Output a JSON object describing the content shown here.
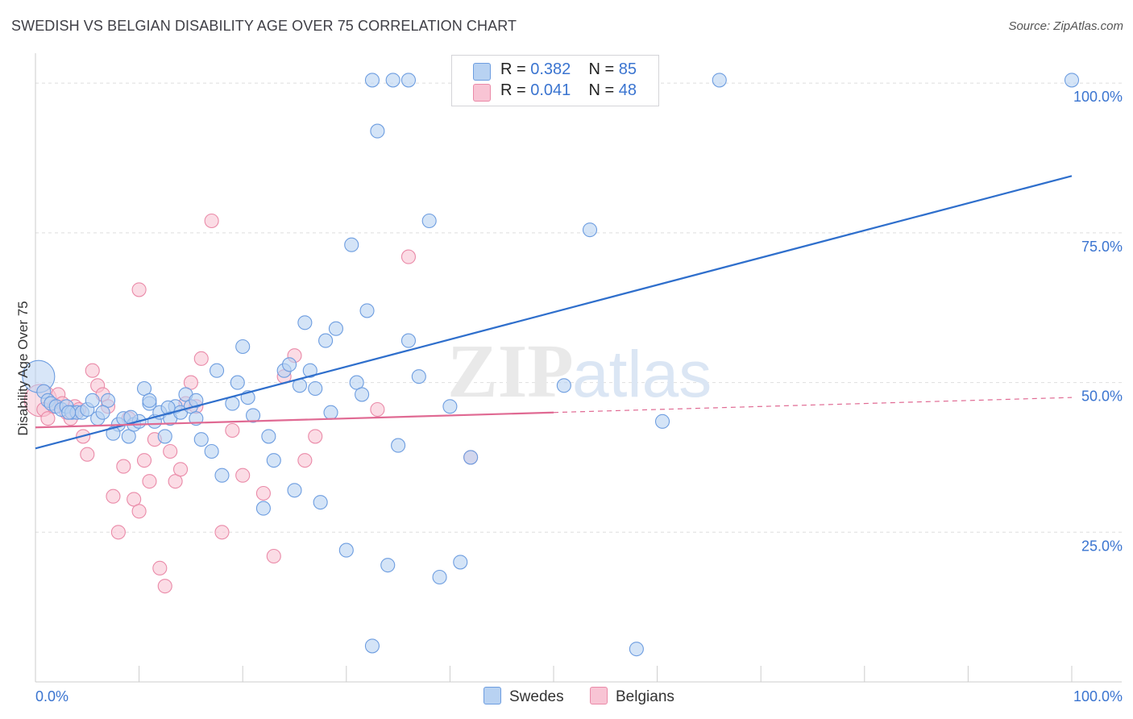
{
  "title": "SWEDISH VS BELGIAN DISABILITY AGE OVER 75 CORRELATION CHART",
  "source": "Source: ZipAtlas.com",
  "watermark": {
    "zip": "ZIP",
    "atlas": "atlas"
  },
  "legend": {
    "r_label": "R = ",
    "n_label": "N = ",
    "swedes": {
      "r": "0.382",
      "n": "85"
    },
    "belgians": {
      "r": "0.041",
      "n": "48"
    }
  },
  "bottom_legend": {
    "swedes": "Swedes",
    "belgians": "Belgians"
  },
  "colors": {
    "swedes_fill": "#b8d2f2",
    "swedes_stroke": "#6d9de0",
    "swedes_line": "#2f6fcc",
    "belgians_fill": "#f8c4d4",
    "belgians_stroke": "#ea8aa8",
    "belgians_line": "#e06a93",
    "axis_label": "#3a74d0",
    "grid": "#dedede"
  },
  "chart_data": {
    "type": "scatter",
    "title": "SWEDISH VS BELGIAN DISABILITY AGE OVER 75 CORRELATION CHART",
    "xlabel": "",
    "ylabel": "Disability Age Over 75",
    "xlim": [
      0,
      100
    ],
    "ylim": [
      0,
      105
    ],
    "x_tick_labels": [
      "0.0%",
      "100.0%"
    ],
    "y_ticks": [
      25,
      50,
      75,
      100
    ],
    "y_tick_labels": [
      "25.0%",
      "50.0%",
      "75.0%",
      "100.0%"
    ],
    "series": [
      {
        "name": "Swedes",
        "r": 0.382,
        "n": 85,
        "trend": {
          "x": [
            0,
            100
          ],
          "y": [
            39,
            84.5
          ]
        },
        "points": [
          [
            0.3,
            51
          ],
          [
            0.8,
            48.5
          ],
          [
            1.2,
            47
          ],
          [
            1.5,
            46.5
          ],
          [
            2,
            46
          ],
          [
            2.5,
            45.5
          ],
          [
            3,
            46
          ],
          [
            3.5,
            45
          ],
          [
            4,
            45
          ],
          [
            4.5,
            45
          ],
          [
            5,
            45.5
          ],
          [
            5.5,
            47
          ],
          [
            6,
            44
          ],
          [
            7,
            47
          ],
          [
            8,
            43
          ],
          [
            8.5,
            44
          ],
          [
            9,
            41
          ],
          [
            9.5,
            43
          ],
          [
            10,
            43.5
          ],
          [
            10.5,
            49
          ],
          [
            11,
            46.5
          ],
          [
            11.5,
            43.5
          ],
          [
            12,
            45
          ],
          [
            12.5,
            41
          ],
          [
            13,
            44
          ],
          [
            13.5,
            46
          ],
          [
            14,
            45
          ],
          [
            14.5,
            48
          ],
          [
            15,
            46
          ],
          [
            15.5,
            44
          ],
          [
            16,
            40.5
          ],
          [
            17,
            38.5
          ],
          [
            18,
            34.5
          ],
          [
            17.5,
            52
          ],
          [
            19,
            46.5
          ],
          [
            19.5,
            50
          ],
          [
            20,
            56
          ],
          [
            21,
            44.5
          ],
          [
            22,
            29
          ],
          [
            22.5,
            41
          ],
          [
            23,
            37
          ],
          [
            24,
            52
          ],
          [
            24.5,
            53
          ],
          [
            25,
            32
          ],
          [
            26,
            60
          ],
          [
            26.5,
            52
          ],
          [
            27,
            49
          ],
          [
            27.5,
            30
          ],
          [
            28,
            57
          ],
          [
            28.5,
            45
          ],
          [
            29,
            59
          ],
          [
            30,
            22
          ],
          [
            30.5,
            73
          ],
          [
            31,
            50
          ],
          [
            31.5,
            48
          ],
          [
            32,
            62
          ],
          [
            32.5,
            6
          ],
          [
            33,
            92
          ],
          [
            34,
            19.5
          ],
          [
            35,
            39.5
          ],
          [
            36,
            57
          ],
          [
            37,
            51
          ],
          [
            38,
            77
          ],
          [
            39,
            17.5
          ],
          [
            40,
            46
          ],
          [
            41,
            20
          ],
          [
            42,
            37.5
          ],
          [
            32.5,
            100.5
          ],
          [
            34.5,
            100.5
          ],
          [
            36,
            100.5
          ],
          [
            53.5,
            75.5
          ],
          [
            51,
            49.5
          ],
          [
            58,
            5.5
          ],
          [
            60.5,
            43.5
          ],
          [
            66,
            100.5
          ],
          [
            100,
            100.5
          ],
          [
            15.5,
            47
          ],
          [
            11,
            47
          ],
          [
            6.5,
            45
          ],
          [
            3.2,
            45
          ],
          [
            7.5,
            41.5
          ],
          [
            12.8,
            45.8
          ],
          [
            20.5,
            47.5
          ],
          [
            25.5,
            49.5
          ],
          [
            9.2,
            44.2
          ]
        ]
      },
      {
        "name": "Belgians",
        "r": 0.041,
        "n": 48,
        "trend": {
          "x": [
            0,
            50
          ],
          "y": [
            42.5,
            45
          ],
          "dashed_extension": {
            "x": [
              50,
              100
            ],
            "y": [
              45,
              47.5
            ]
          }
        },
        "points": [
          [
            0.5,
            47
          ],
          [
            0.8,
            45.5
          ],
          [
            1.2,
            44
          ],
          [
            1.8,
            46
          ],
          [
            2.2,
            48
          ],
          [
            2.6,
            46.5
          ],
          [
            3,
            45
          ],
          [
            3.4,
            44
          ],
          [
            3.8,
            46
          ],
          [
            4.2,
            45.5
          ],
          [
            4.6,
            41
          ],
          [
            5,
            38
          ],
          [
            5.5,
            52
          ],
          [
            6,
            49.5
          ],
          [
            6.5,
            48
          ],
          [
            7,
            46
          ],
          [
            7.5,
            31
          ],
          [
            8,
            25
          ],
          [
            8.5,
            36
          ],
          [
            9,
            44
          ],
          [
            9.5,
            30.5
          ],
          [
            10,
            28.5
          ],
          [
            10.5,
            37
          ],
          [
            11,
            33.5
          ],
          [
            11.5,
            40.5
          ],
          [
            12,
            19
          ],
          [
            12.5,
            16
          ],
          [
            13,
            38.5
          ],
          [
            13.5,
            33.5
          ],
          [
            14,
            35.5
          ],
          [
            14.5,
            46.5
          ],
          [
            15,
            50
          ],
          [
            15.5,
            46
          ],
          [
            16,
            54
          ],
          [
            17,
            77
          ],
          [
            18,
            25
          ],
          [
            19,
            42
          ],
          [
            20,
            34.5
          ],
          [
            22,
            31.5
          ],
          [
            23,
            21
          ],
          [
            24,
            51
          ],
          [
            25,
            54.5
          ],
          [
            26,
            37
          ],
          [
            27,
            41
          ],
          [
            36,
            71
          ],
          [
            33,
            45.5
          ],
          [
            42,
            37.5
          ],
          [
            10,
            65.5
          ]
        ]
      }
    ]
  }
}
